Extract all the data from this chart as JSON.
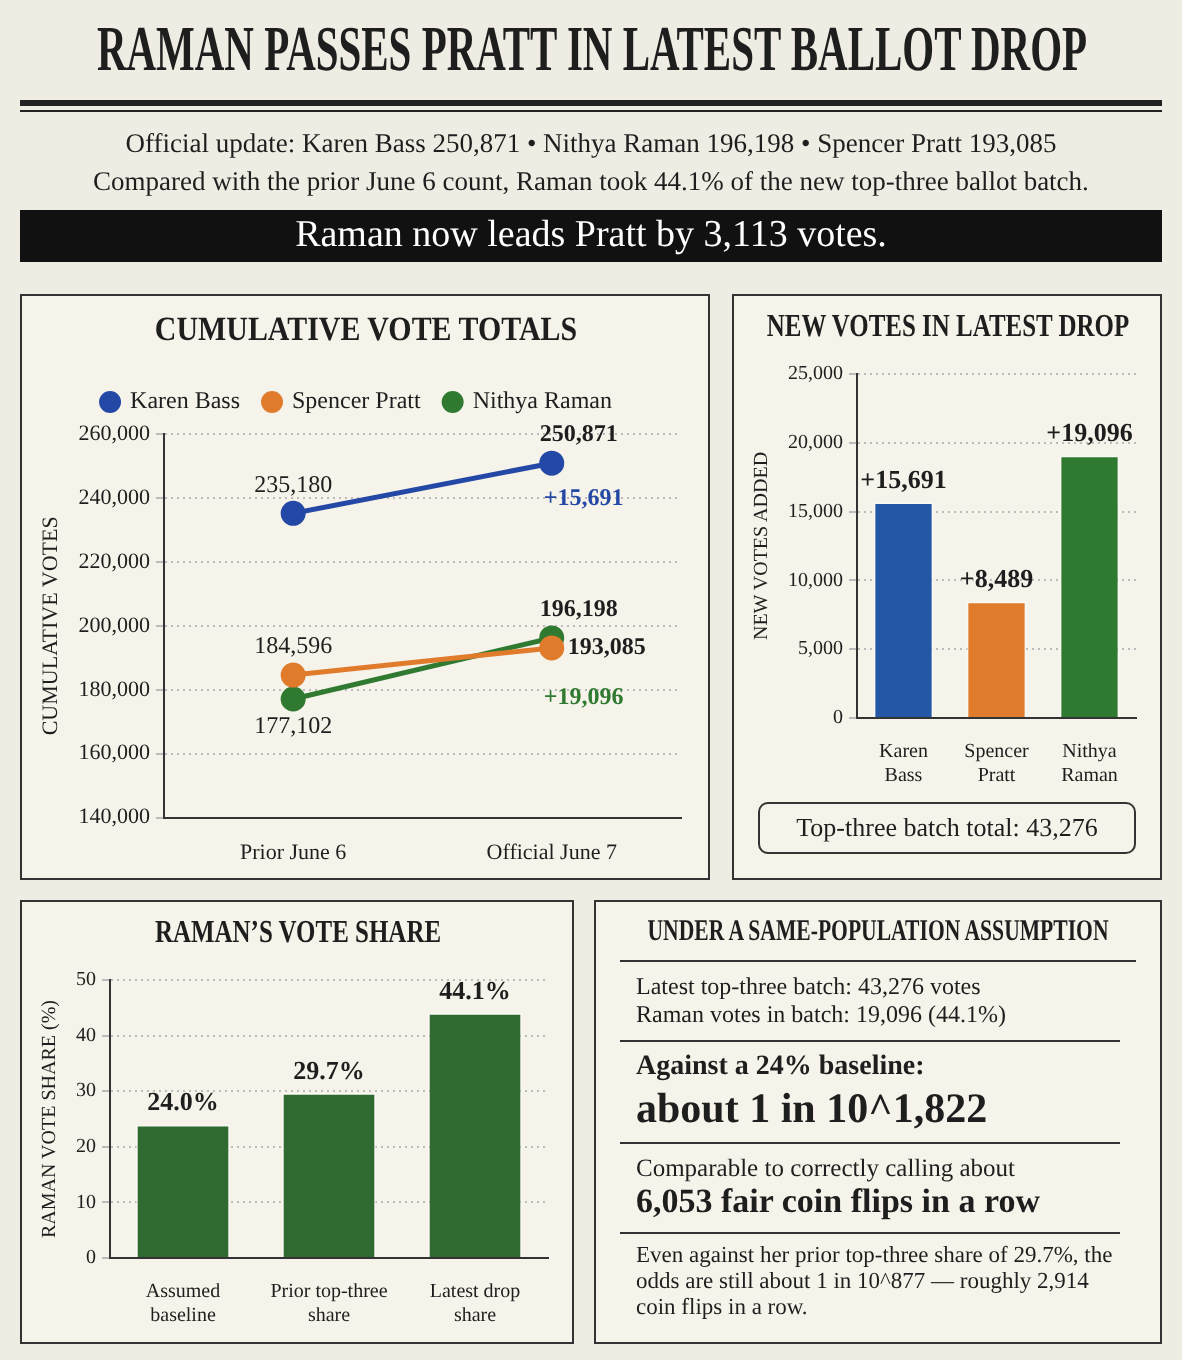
{
  "chart_data": [
    {
      "type": "other",
      "title": "RAMAN PASSES PRATT IN LATEST BALLOT DROP",
      "subtitle": "Official update: Karen Bass 250,871 • Nithya Raman 196,198 • Spencer Pratt 193,085",
      "annotations": [
        "Compared with the prior June 6 count, Raman took 44.1% of the new top-three ballot batch.",
        "Raman now leads Pratt by 3,113 votes."
      ]
    },
    {
      "type": "line",
      "title": "CUMULATIVE VOTE TOTALS",
      "categories": [
        "Prior June 6",
        "Official June 7"
      ],
      "series": [
        {
          "name": "Karen Bass",
          "color": "#2448a6",
          "values": [
            235180,
            250871
          ],
          "value_labels": [
            "235,180",
            "250,871"
          ]
        },
        {
          "name": "Spencer Pratt",
          "color": "#e07b2c",
          "values": [
            184596,
            193085
          ],
          "value_labels": [
            "184,596",
            "193,085"
          ]
        },
        {
          "name": "Nithya Raman",
          "color": "#2f7a30",
          "values": [
            177102,
            196198
          ],
          "value_labels": [
            "177,102",
            "196,198"
          ]
        }
      ],
      "ylabel": "CUMULATIVE VOTES",
      "ylim": [
        140000,
        260000
      ],
      "yticks": [
        {
          "value": 140000,
          "label": "140,000"
        },
        {
          "value": 160000,
          "label": "160,000"
        },
        {
          "value": 180000,
          "label": "180,000"
        },
        {
          "value": 200000,
          "label": "200,000"
        },
        {
          "value": 220000,
          "label": "220,000"
        },
        {
          "value": 240000,
          "label": "240,000"
        },
        {
          "value": 260000,
          "label": "260,000"
        }
      ],
      "grid": "y",
      "legend": "top",
      "marker": "circle",
      "annotations": [
        {
          "text": "+15,691",
          "x": "Official June 7",
          "y": 250871
        },
        {
          "text": "+19,096",
          "x": "Official June 7",
          "y": 196198
        }
      ]
    },
    {
      "type": "bar",
      "title": "NEW VOTES IN LATEST DROP",
      "categories": [
        "Karen Bass",
        "Spencer Pratt",
        "Nithya Raman"
      ],
      "values": [
        15691,
        8489,
        19096
      ],
      "colors": [
        "#2458a6",
        "#e07b2c",
        "#2f7a30"
      ],
      "value_labels": [
        "+15,691",
        "+8,489",
        "+19,096"
      ],
      "ylabel": "NEW VOTES ADDED",
      "ylim": [
        0,
        25000
      ],
      "yticks": [
        0,
        {
          "value": 5000,
          "label": "5,000"
        },
        {
          "value": 10000,
          "label": "10,000"
        },
        {
          "value": 15000,
          "label": "15,000"
        },
        {
          "value": 20000,
          "label": "20,000"
        },
        {
          "value": 25000,
          "label": "25,000"
        }
      ],
      "grid": "y",
      "annotations": [
        "Top-three batch total: 43,276"
      ]
    },
    {
      "type": "bar",
      "title": "RAMAN’S VOTE SHARE",
      "categories": [
        "Assumed baseline",
        "Prior top-three share",
        "Latest drop share"
      ],
      "values": [
        24.0,
        29.7,
        44.1
      ],
      "colors": [
        "#2f6b30",
        "#2f6b30",
        "#2f6b30"
      ],
      "value_labels": [
        "24.0%",
        "29.7%",
        "44.1%"
      ],
      "ylabel": "RAMAN VOTE SHARE (%)",
      "ylim": [
        0,
        50
      ],
      "yticks": [
        0,
        10,
        20,
        30,
        40,
        50
      ],
      "grid": "y"
    },
    {
      "type": "other",
      "title": "UNDER A SAME-POPULATION ASSUMPTION",
      "annotations": [
        "Latest top-three batch: 43,276 votes",
        "Raman votes in batch: 19,096 (44.1%)",
        "Against a 24% baseline:",
        "about 1 in 10^1,822",
        "Comparable to correctly calling about",
        "6,053 fair coin flips in a row",
        "Even against her prior top-three share of 29.7%, the odds are still about 1 in 10^877 — roughly 2,914 coin flips in a row."
      ]
    }
  ]
}
